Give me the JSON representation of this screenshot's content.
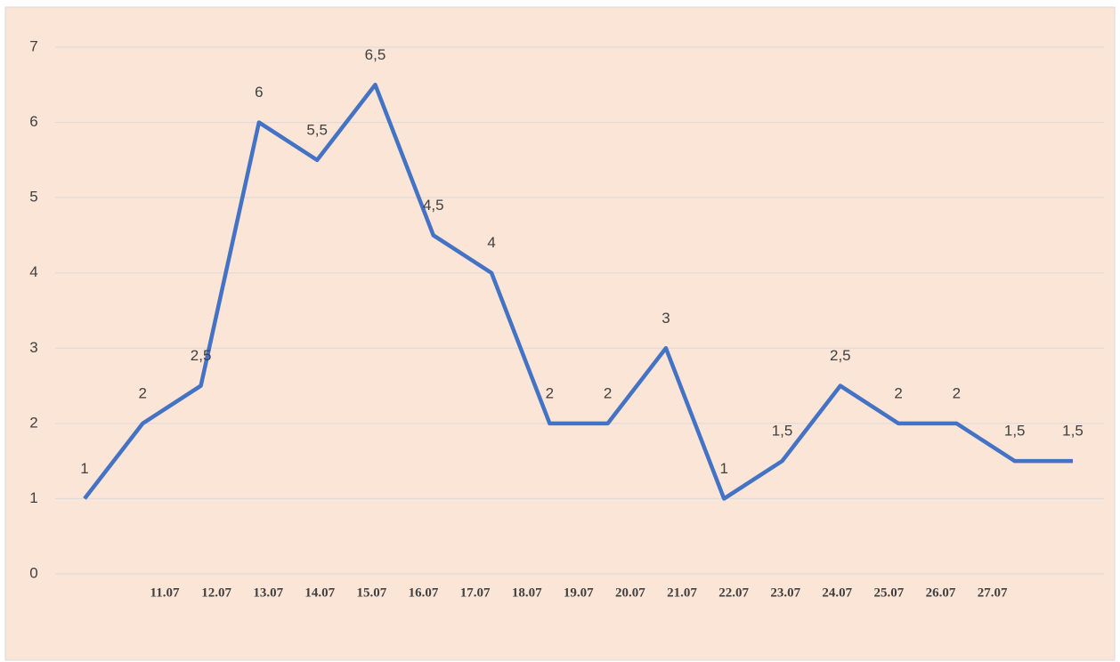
{
  "chart_data": {
    "type": "line",
    "categories": [
      null,
      "11.07",
      "12.07",
      "13.07",
      "14.07",
      "15.07",
      "16.07",
      "17.07",
      "18.07",
      "19.07",
      "20.07",
      "21.07",
      "22.07",
      "23.07",
      "24.07",
      "25.07",
      "26.07",
      "27.07"
    ],
    "series": [
      {
        "color": "#4472c4",
        "values": [
          1,
          2,
          2.5,
          6,
          5.5,
          6.5,
          4.5,
          4,
          2,
          2,
          3,
          1,
          1.5,
          2.5,
          2,
          2,
          1.5,
          1.5
        ],
        "value_labels": [
          "1",
          "2",
          "2,5",
          "6",
          "5,5",
          "6,5",
          "4,5",
          "4",
          "2",
          "2",
          "3",
          "1",
          "1,5",
          "2,5",
          "2",
          "2",
          "1,5",
          "1,5"
        ]
      }
    ],
    "ylim": [
      0,
      7
    ],
    "yticks": [
      0,
      1,
      2,
      3,
      4,
      5,
      6,
      7
    ],
    "grid": true
  }
}
